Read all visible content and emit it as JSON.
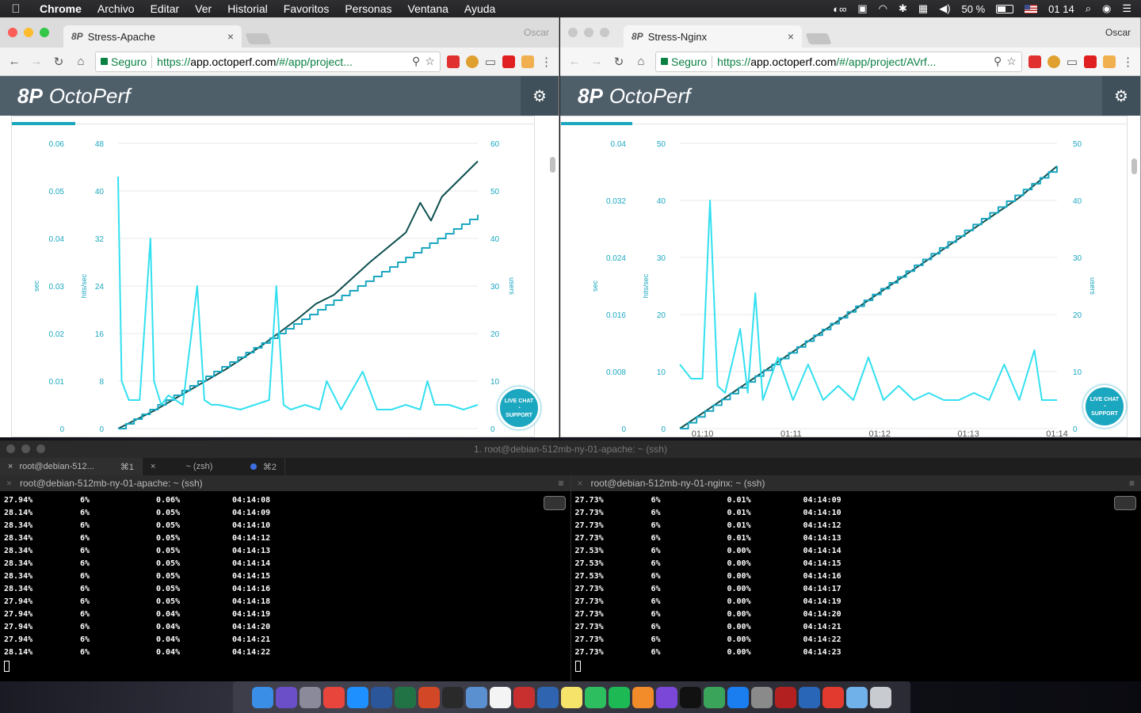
{
  "menubar": {
    "app": "Chrome",
    "items": [
      "Archivo",
      "Editar",
      "Ver",
      "Historial",
      "Favoritos",
      "Personas",
      "Ventana",
      "Ayuda"
    ],
    "battery": "50 %",
    "clock": "01 14"
  },
  "browsers": [
    {
      "tab_title": "Stress-Apache",
      "profile": "Oscar",
      "secure_label": "Seguro",
      "url_scheme": "https://",
      "url_host": "app.octoperf.com",
      "url_path": "/#/app/project...",
      "logo_mark": "8P",
      "logo_text": "OctoPerf",
      "livechat_top": "LIVE CHAT",
      "livechat_bottom": "SUPPORT",
      "chart_data": {
        "type": "line",
        "axes": {
          "left_outer": {
            "label": "sec",
            "ticks": [
              "0.06",
              "0.05",
              "0.04",
              "0.03",
              "0.02",
              "0.01",
              "0"
            ],
            "range": [
              0,
              0.06
            ]
          },
          "left_inner": {
            "label": "hits/sec",
            "ticks": [
              "48",
              "40",
              "32",
              "24",
              "16",
              "8",
              "0"
            ],
            "range": [
              0,
              48
            ]
          },
          "right": {
            "label": "users",
            "ticks": [
              "60",
              "50",
              "40",
              "30",
              "20",
              "10",
              "0"
            ],
            "range": [
              0,
              60
            ]
          }
        },
        "grid": true,
        "series": [
          {
            "axis": "left_inner",
            "color": "#0d4f4f",
            "x": [
              0,
              10,
              20,
              30,
              40,
              50,
              55,
              60,
              70,
              80,
              84,
              87,
              90,
              95,
              100
            ],
            "y": [
              0,
              3,
              6.5,
              10,
              14,
              18.5,
              21,
              22.5,
              28,
              33,
              38,
              35,
              39,
              42,
              45
            ]
          },
          {
            "axis": "right",
            "color": "#1ba7c0",
            "step": true,
            "x": [
              0,
              100
            ],
            "y": [
              0,
              45
            ]
          },
          {
            "axis": "left_outer",
            "color": "#33e0f0",
            "x": [
              0,
              1,
              3,
              6,
              9,
              10,
              12,
              14,
              18,
              22,
              24,
              26,
              28,
              34,
              42,
              44,
              46,
              48,
              52,
              56,
              58,
              62,
              68,
              72,
              76,
              80,
              84,
              86,
              88,
              92,
              96,
              100
            ],
            "y": [
              0.053,
              0.01,
              0.006,
              0.006,
              0.04,
              0.01,
              0.005,
              0.007,
              0.005,
              0.03,
              0.006,
              0.005,
              0.005,
              0.004,
              0.006,
              0.03,
              0.005,
              0.004,
              0.005,
              0.004,
              0.01,
              0.004,
              0.012,
              0.004,
              0.004,
              0.005,
              0.004,
              0.01,
              0.005,
              0.005,
              0.004,
              0.005
            ]
          }
        ]
      }
    },
    {
      "tab_title": "Stress-Nginx",
      "profile": "Oscar",
      "secure_label": "Seguro",
      "url_scheme": "https://",
      "url_host": "app.octoperf.com",
      "url_path": "/#/app/project/AVrf...",
      "logo_mark": "8P",
      "logo_text": "OctoPerf",
      "livechat_top": "LIVE CHAT",
      "livechat_bottom": "SUPPORT",
      "chart_data": {
        "type": "line",
        "axes": {
          "left_outer": {
            "label": "sec",
            "ticks": [
              "0.04",
              "0.032",
              "0.024",
              "0.016",
              "0.008",
              "0"
            ],
            "range": [
              0,
              0.04
            ]
          },
          "left_inner": {
            "label": "hits/sec",
            "ticks": [
              "50",
              "40",
              "30",
              "20",
              "10",
              "0"
            ],
            "range": [
              0,
              50
            ]
          },
          "right": {
            "label": "users",
            "ticks": [
              "50",
              "40",
              "30",
              "20",
              "10",
              "0"
            ],
            "range": [
              0,
              50
            ]
          },
          "x_ticks": [
            "01:10",
            "01:11",
            "01:12",
            "01:13",
            "01:14"
          ]
        },
        "grid": true,
        "series": [
          {
            "axis": "left_inner",
            "color": "#0d4f4f",
            "x": [
              0,
              10,
              20,
              30,
              40,
              50,
              60,
              70,
              80,
              90,
              100
            ],
            "y": [
              0,
              4.5,
              9,
              13.5,
              18,
              22.5,
              27,
              31.5,
              36,
              40.5,
              46
            ]
          },
          {
            "axis": "right",
            "color": "#1ba7c0",
            "step": true,
            "x": [
              0,
              100
            ],
            "y": [
              0,
              46
            ]
          },
          {
            "axis": "left_outer",
            "color": "#33e0f0",
            "x": [
              0,
              3,
              6,
              8,
              10,
              12,
              16,
              18,
              20,
              22,
              26,
              30,
              34,
              38,
              42,
              46,
              50,
              54,
              58,
              62,
              66,
              70,
              74,
              78,
              82,
              86,
              90,
              94,
              96,
              100
            ],
            "y": [
              0.009,
              0.007,
              0.007,
              0.032,
              0.006,
              0.005,
              0.014,
              0.005,
              0.019,
              0.004,
              0.01,
              0.004,
              0.009,
              0.004,
              0.006,
              0.004,
              0.01,
              0.004,
              0.006,
              0.004,
              0.005,
              0.004,
              0.004,
              0.005,
              0.004,
              0.009,
              0.004,
              0.011,
              0.004,
              0.004
            ]
          }
        ]
      }
    }
  ],
  "terminal": {
    "window_title": "1. root@debian-512mb-ny-01-apache: ~ (ssh)",
    "tabs": [
      {
        "label": "root@debian-512...",
        "shortcut": "⌘1"
      },
      {
        "label": "~ (zsh)",
        "shortcut": "⌘2"
      }
    ],
    "panes": [
      {
        "title": "root@debian-512mb-ny-01-apache: ~ (ssh)",
        "rows": [
          [
            "27.94%",
            "6%",
            "0.06%",
            "04:14:08"
          ],
          [
            "28.14%",
            "6%",
            "0.05%",
            "04:14:09"
          ],
          [
            "28.34%",
            "6%",
            "0.05%",
            "04:14:10"
          ],
          [
            "28.34%",
            "6%",
            "0.05%",
            "04:14:12"
          ],
          [
            "28.34%",
            "6%",
            "0.05%",
            "04:14:13"
          ],
          [
            "28.34%",
            "6%",
            "0.05%",
            "04:14:14"
          ],
          [
            "28.34%",
            "6%",
            "0.05%",
            "04:14:15"
          ],
          [
            "28.34%",
            "6%",
            "0.05%",
            "04:14:16"
          ],
          [
            "27.94%",
            "6%",
            "0.05%",
            "04:14:18"
          ],
          [
            "27.94%",
            "6%",
            "0.04%",
            "04:14:19"
          ],
          [
            "27.94%",
            "6%",
            "0.04%",
            "04:14:20"
          ],
          [
            "27.94%",
            "6%",
            "0.04%",
            "04:14:21"
          ],
          [
            "28.14%",
            "6%",
            "0.04%",
            "04:14:22"
          ]
        ]
      },
      {
        "title": "root@debian-512mb-ny-01-nginx: ~ (ssh)",
        "rows": [
          [
            "27.73%",
            "6%",
            "0.01%",
            "04:14:09"
          ],
          [
            "27.73%",
            "6%",
            "0.01%",
            "04:14:10"
          ],
          [
            "27.73%",
            "6%",
            "0.01%",
            "04:14:12"
          ],
          [
            "27.73%",
            "6%",
            "0.01%",
            "04:14:13"
          ],
          [
            "27.53%",
            "6%",
            "0.00%",
            "04:14:14"
          ],
          [
            "27.53%",
            "6%",
            "0.00%",
            "04:14:15"
          ],
          [
            "27.53%",
            "6%",
            "0.00%",
            "04:14:16"
          ],
          [
            "27.73%",
            "6%",
            "0.00%",
            "04:14:17"
          ],
          [
            "27.73%",
            "6%",
            "0.00%",
            "04:14:19"
          ],
          [
            "27.73%",
            "6%",
            "0.00%",
            "04:14:20"
          ],
          [
            "27.73%",
            "6%",
            "0.00%",
            "04:14:21"
          ],
          [
            "27.73%",
            "6%",
            "0.00%",
            "04:14:22"
          ],
          [
            "27.73%",
            "6%",
            "0.00%",
            "04:14:23"
          ]
        ]
      }
    ]
  },
  "dock": {
    "items": [
      {
        "name": "finder",
        "color": "#3a8ee6"
      },
      {
        "name": "siri",
        "color": "#6a4fc8"
      },
      {
        "name": "launchpad",
        "color": "#8a8a9a"
      },
      {
        "name": "chrome",
        "color": "#e8453c"
      },
      {
        "name": "safari",
        "color": "#1e90ff"
      },
      {
        "name": "word",
        "color": "#2b579a"
      },
      {
        "name": "excel",
        "color": "#217346"
      },
      {
        "name": "powerpoint",
        "color": "#d24726"
      },
      {
        "name": "activity-monitor",
        "color": "#2a2a2a"
      },
      {
        "name": "preview",
        "color": "#5a8fd0"
      },
      {
        "name": "calendar",
        "color": "#f4f4f4"
      },
      {
        "name": "remote-desktop",
        "color": "#c83030"
      },
      {
        "name": "virtualbox",
        "color": "#2f64b0"
      },
      {
        "name": "notes",
        "color": "#f6e36a"
      },
      {
        "name": "evernote",
        "color": "#2dbe60"
      },
      {
        "name": "spotify",
        "color": "#1db954"
      },
      {
        "name": "sublime",
        "color": "#f28b2a"
      },
      {
        "name": "things",
        "color": "#7a47d8"
      },
      {
        "name": "terminal",
        "color": "#111111"
      },
      {
        "name": "keepassx",
        "color": "#3aa55a"
      },
      {
        "name": "app-store",
        "color": "#1a7ef0"
      },
      {
        "name": "system-preferences",
        "color": "#8a8a8a"
      },
      {
        "name": "filezilla",
        "color": "#b32020"
      },
      {
        "name": "scrivener",
        "color": "#2a66b8"
      },
      {
        "name": "pdf",
        "color": "#e23a2e"
      },
      {
        "name": "folder",
        "color": "#6fb1e8"
      },
      {
        "name": "trash",
        "color": "#c8ccd0"
      }
    ]
  }
}
